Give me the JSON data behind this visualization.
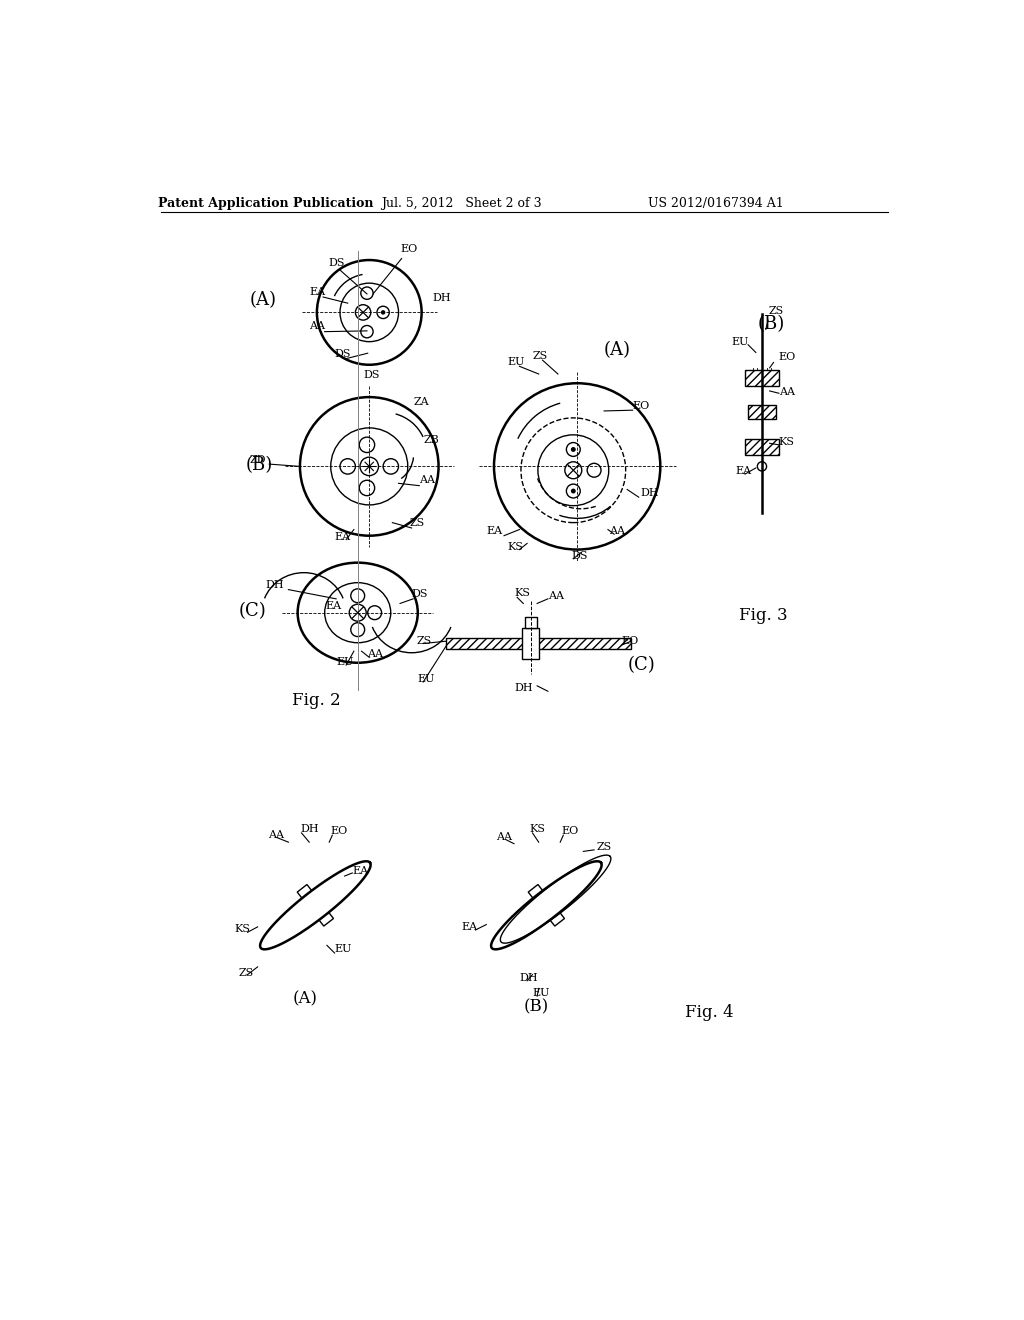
{
  "bg_color": "#ffffff",
  "header_left": "Patent Application Publication",
  "header_mid": "Jul. 5, 2012   Sheet 2 of 3",
  "header_right": "US 2012/0167394 A1",
  "fig2_label": "Fig. 2",
  "fig3_label": "Fig. 3",
  "fig4_label": "Fig. 4"
}
